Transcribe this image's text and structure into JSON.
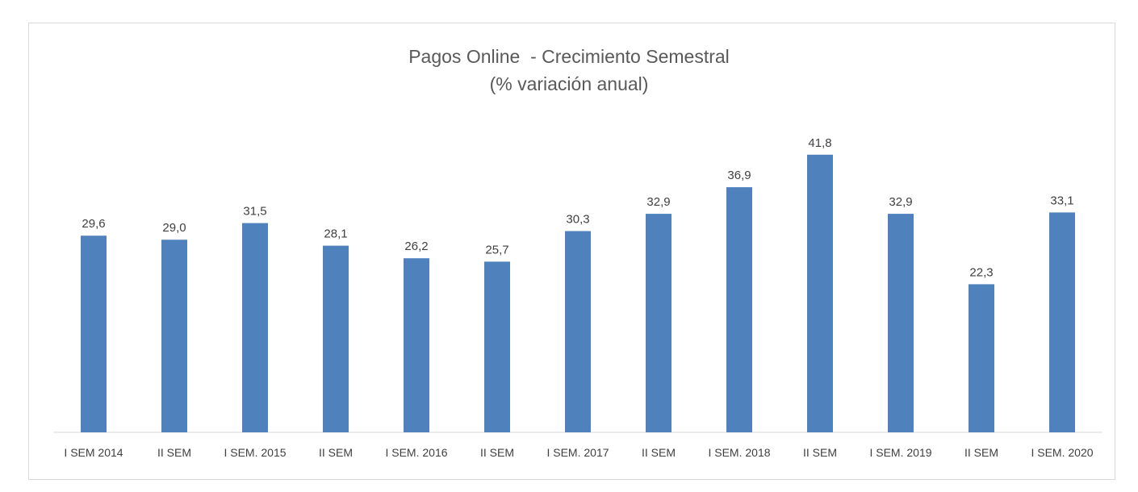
{
  "chart_data": {
    "type": "bar",
    "title": "Pagos Online  - Crecimiento Semestral",
    "subtitle": "(% variación anual)",
    "categories": [
      "I SEM 2014",
      "II SEM",
      "I SEM. 2015",
      "II SEM",
      "I SEM. 2016",
      "II SEM",
      "I SEM. 2017",
      "II SEM",
      "I SEM. 2018",
      "II SEM",
      "I SEM. 2019",
      "II SEM",
      "I SEM. 2020"
    ],
    "values": [
      29.6,
      29.0,
      31.5,
      28.1,
      26.2,
      25.7,
      30.3,
      32.9,
      36.9,
      41.8,
      32.9,
      22.3,
      33.1
    ],
    "data_labels": [
      "29,6",
      "29,0",
      "31,5",
      "28,1",
      "26,2",
      "25,7",
      "30,3",
      "32,9",
      "36,9",
      "41,8",
      "32,9",
      "22,3",
      "33,1"
    ],
    "ylim": [
      0,
      45
    ],
    "grid": false,
    "legend": "none",
    "bar_color": "#4f81bd",
    "xlabel": "",
    "ylabel": ""
  }
}
